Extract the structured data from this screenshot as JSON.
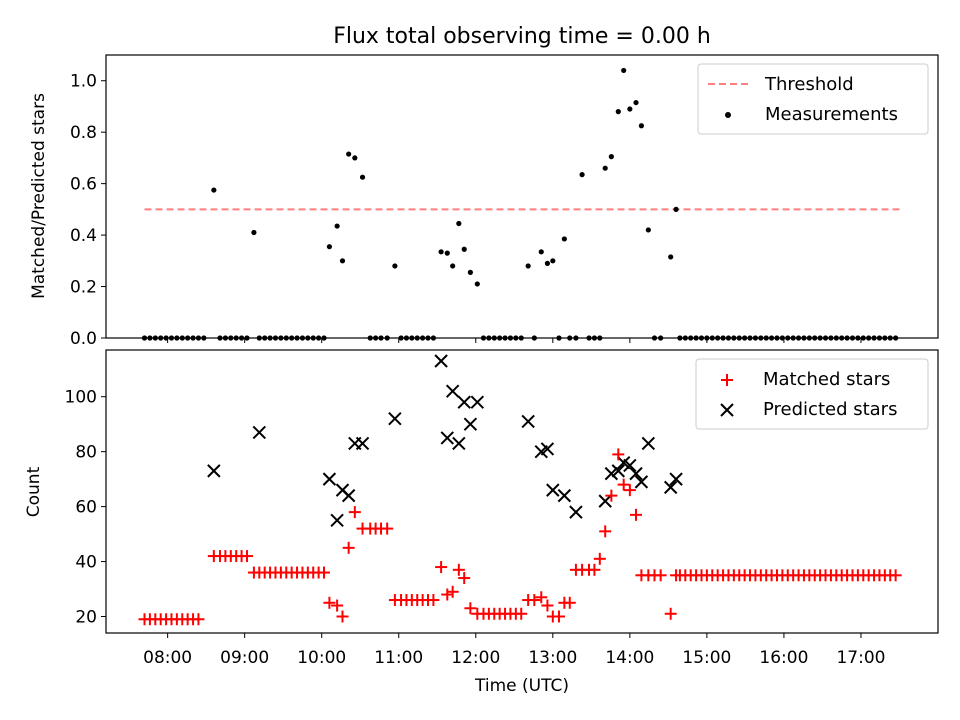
{
  "title": "Flux total observing time = 0.00 h",
  "x_axis": {
    "label": "Time (UTC)",
    "ticks": [
      "08:00",
      "09:00",
      "10:00",
      "11:00",
      "12:00",
      "13:00",
      "14:00",
      "15:00",
      "16:00",
      "17:00"
    ]
  },
  "colors": {
    "threshold": "#ff7f7f",
    "measurements": "#000000",
    "matched": "#ff0000",
    "predicted": "#000000"
  },
  "chart_data": [
    {
      "type": "scatter",
      "title": "Flux total observing time = 0.00 h",
      "xlabel": "",
      "ylabel": "Matched/Predicted stars",
      "x_unit": "hours UTC",
      "xlim": [
        7.2,
        18.0
      ],
      "ylim": [
        0,
        1.1
      ],
      "yticks": [
        "0.0",
        "0.2",
        "0.4",
        "0.6",
        "0.8",
        "1.0"
      ],
      "legend": {
        "position": "top-right",
        "entries": [
          "Threshold",
          "Measurements"
        ]
      },
      "threshold": {
        "name": "Threshold",
        "y": 0.5,
        "x_range": [
          7.7,
          17.5
        ]
      },
      "series": [
        {
          "name": "Measurements",
          "x": [
            7.7,
            7.77,
            7.84,
            7.91,
            7.98,
            8.05,
            8.12,
            8.19,
            8.26,
            8.33,
            8.4,
            8.47,
            8.6,
            8.68,
            8.75,
            8.82,
            8.89,
            8.96,
            9.03,
            9.12,
            9.19,
            9.26,
            9.33,
            9.4,
            9.47,
            9.54,
            9.61,
            9.68,
            9.75,
            9.82,
            9.89,
            9.96,
            10.03,
            10.1,
            10.2,
            10.27,
            10.35,
            10.43,
            10.53,
            10.63,
            10.7,
            10.77,
            10.85,
            10.95,
            11.03,
            11.1,
            11.17,
            11.24,
            11.31,
            11.38,
            11.45,
            11.55,
            11.63,
            11.7,
            11.78,
            11.85,
            11.93,
            12.02,
            12.1,
            12.17,
            12.24,
            12.31,
            12.38,
            12.45,
            12.52,
            12.59,
            12.68,
            12.76,
            12.85,
            12.93,
            13.0,
            13.08,
            13.15,
            13.22,
            13.3,
            13.38,
            13.47,
            13.54,
            13.61,
            13.68,
            13.76,
            13.85,
            13.92,
            14.0,
            14.08,
            14.15,
            14.24,
            14.32,
            14.4,
            14.53,
            14.6,
            14.65,
            14.72,
            14.79,
            14.86,
            14.93,
            15.0,
            15.07,
            15.14,
            15.21,
            15.28,
            15.35,
            15.42,
            15.49,
            15.56,
            15.63,
            15.7,
            15.77,
            15.84,
            15.91,
            15.98,
            16.05,
            16.12,
            16.19,
            16.26,
            16.33,
            16.4,
            16.47,
            16.54,
            16.61,
            16.68,
            16.75,
            16.82,
            16.89,
            16.96,
            17.03,
            17.1,
            17.17,
            17.24,
            17.31,
            17.38,
            17.45
          ],
          "y": [
            0,
            0,
            0,
            0,
            0,
            0,
            0,
            0,
            0,
            0,
            0,
            0,
            0.575,
            0,
            0,
            0,
            0,
            0,
            0,
            0.41,
            0,
            0,
            0,
            0,
            0,
            0,
            0,
            0,
            0,
            0,
            0,
            0,
            0,
            0.355,
            0.435,
            0.3,
            0.715,
            0.7,
            0.625,
            0,
            0,
            0,
            0,
            0.28,
            0,
            0,
            0,
            0,
            0,
            0,
            0,
            0.335,
            0.33,
            0.28,
            0.445,
            0.345,
            0.255,
            0.21,
            0,
            0,
            0,
            0,
            0,
            0,
            0,
            0,
            0.28,
            0,
            0.335,
            0.29,
            0.3,
            0,
            0.385,
            0,
            0,
            0.635,
            0,
            0,
            0,
            0.66,
            0.705,
            0.88,
            1.04,
            0.89,
            0.915,
            0.825,
            0.42,
            0,
            0,
            0.315,
            0.5,
            0,
            0,
            0,
            0,
            0,
            0,
            0,
            0,
            0,
            0,
            0,
            0,
            0,
            0,
            0,
            0,
            0,
            0,
            0,
            0,
            0,
            0,
            0,
            0,
            0,
            0,
            0,
            0,
            0,
            0,
            0,
            0,
            0,
            0,
            0,
            0,
            0,
            0,
            0,
            0,
            0
          ]
        }
      ]
    },
    {
      "type": "scatter",
      "title": "",
      "xlabel": "Time (UTC)",
      "ylabel": "Count",
      "x_unit": "hours UTC",
      "xlim": [
        7.2,
        18.0
      ],
      "ylim": [
        14,
        117
      ],
      "yticks": [
        "20",
        "40",
        "60",
        "80",
        "100"
      ],
      "legend": {
        "position": "top-right",
        "entries": [
          "Matched stars",
          "Predicted stars"
        ]
      },
      "series": [
        {
          "name": "Matched stars",
          "marker": "+",
          "x": [
            7.7,
            7.77,
            7.84,
            7.91,
            7.98,
            8.05,
            8.12,
            8.19,
            8.26,
            8.33,
            8.4,
            8.6,
            8.68,
            8.75,
            8.82,
            8.89,
            8.96,
            9.03,
            9.12,
            9.19,
            9.26,
            9.33,
            9.4,
            9.47,
            9.54,
            9.61,
            9.68,
            9.75,
            9.82,
            9.89,
            9.96,
            10.03,
            10.1,
            10.2,
            10.27,
            10.35,
            10.43,
            10.53,
            10.63,
            10.7,
            10.77,
            10.85,
            10.95,
            11.03,
            11.1,
            11.17,
            11.24,
            11.31,
            11.38,
            11.45,
            11.55,
            11.63,
            11.7,
            11.78,
            11.85,
            11.93,
            12.02,
            12.1,
            12.17,
            12.24,
            12.31,
            12.38,
            12.45,
            12.52,
            12.59,
            12.68,
            12.76,
            12.85,
            12.93,
            13.0,
            13.08,
            13.15,
            13.22,
            13.3,
            13.38,
            13.47,
            13.54,
            13.61,
            13.68,
            13.76,
            13.85,
            13.92,
            14.0,
            14.08,
            14.15,
            14.24,
            14.32,
            14.4,
            14.53,
            14.6,
            14.65,
            14.72,
            14.79,
            14.86,
            14.93,
            15.0,
            15.07,
            15.14,
            15.21,
            15.28,
            15.35,
            15.42,
            15.49,
            15.56,
            15.63,
            15.7,
            15.77,
            15.84,
            15.91,
            15.98,
            16.05,
            16.12,
            16.19,
            16.26,
            16.33,
            16.4,
            16.47,
            16.54,
            16.61,
            16.68,
            16.75,
            16.82,
            16.89,
            16.96,
            17.03,
            17.1,
            17.17,
            17.24,
            17.31,
            17.38,
            17.45
          ],
          "y": [
            19,
            19,
            19,
            19,
            19,
            19,
            19,
            19,
            19,
            19,
            19,
            42,
            42,
            42,
            42,
            42,
            42,
            42,
            36,
            36,
            36,
            36,
            36,
            36,
            36,
            36,
            36,
            36,
            36,
            36,
            36,
            36,
            25,
            24,
            20,
            45,
            58,
            52,
            52,
            52,
            52,
            52,
            26,
            26,
            26,
            26,
            26,
            26,
            26,
            26,
            38,
            28,
            29,
            37,
            34,
            23,
            21,
            21,
            21,
            21,
            21,
            21,
            21,
            21,
            21,
            26,
            26,
            27,
            24,
            20,
            20,
            25,
            25,
            37,
            37,
            37,
            37,
            41,
            51,
            64,
            79,
            68,
            66,
            57,
            35,
            35,
            35,
            35,
            21,
            35,
            35,
            35,
            35,
            35,
            35,
            35,
            35,
            35,
            35,
            35,
            35,
            35,
            35,
            35,
            35,
            35,
            35,
            35,
            35,
            35,
            35,
            35,
            35,
            35,
            35,
            35,
            35,
            35,
            35,
            35,
            35,
            35,
            35,
            35,
            35,
            35,
            35,
            35,
            35,
            35,
            35
          ]
        },
        {
          "name": "Predicted stars",
          "marker": "x",
          "x": [
            8.6,
            9.19,
            10.1,
            10.2,
            10.27,
            10.35,
            10.43,
            10.53,
            10.95,
            11.55,
            11.63,
            11.7,
            11.78,
            11.85,
            11.93,
            12.02,
            12.68,
            12.85,
            12.93,
            13.0,
            13.15,
            13.3,
            13.68,
            13.76,
            13.85,
            13.92,
            14.0,
            14.08,
            14.15,
            14.24,
            14.53,
            14.6
          ],
          "y": [
            73,
            87,
            70,
            55,
            66,
            64,
            83,
            83,
            92,
            113,
            85,
            102,
            83,
            98,
            90,
            98,
            91,
            80,
            81,
            66,
            64,
            58,
            62,
            72,
            73,
            76,
            75,
            72,
            69,
            83,
            67,
            70
          ]
        }
      ]
    }
  ]
}
